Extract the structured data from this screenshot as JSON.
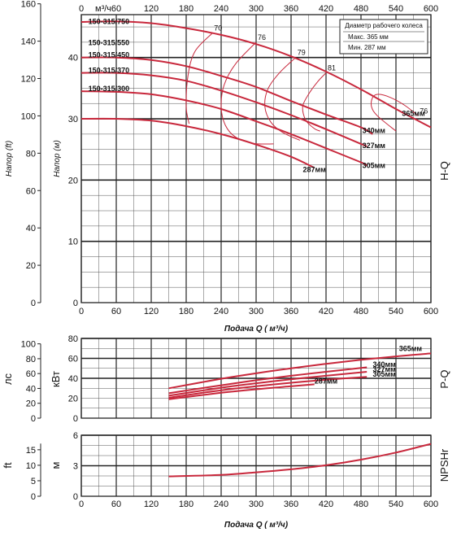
{
  "colors": {
    "curve": "#c8283c",
    "grid": "#222222",
    "minorGrid": "#555555"
  },
  "chart_data": [
    {
      "id": "hq",
      "type": "line",
      "side_label": "H-Q",
      "xlabel": "Подача Q ( м³/ч)",
      "ylabel_left": "Напор (ft)",
      "ylabel_right": "Напор (м)",
      "top_x_unit": "м³/ч",
      "xlim": [
        0,
        600
      ],
      "ylim": [
        0,
        47
      ],
      "x_ticks": [
        0,
        60,
        120,
        180,
        240,
        300,
        360,
        420,
        480,
        540,
        600
      ],
      "y_ticks": [
        10,
        20,
        30,
        40
      ],
      "ft_ticks": [
        0,
        20,
        40,
        60,
        80,
        100,
        120,
        140,
        160
      ],
      "legend": {
        "title": "Диаметр рабочего колеса",
        "max": "Макс.  365 мм",
        "min": "Мин.    287 мм"
      },
      "model_labels": [
        {
          "text": "150-315/750",
          "x": 12,
          "y": 45.5
        },
        {
          "text": "150-315/550",
          "x": 12,
          "y": 42.0
        },
        {
          "text": "150-315/450",
          "x": 12,
          "y": 40.0
        },
        {
          "text": "150-315/370",
          "x": 12,
          "y": 37.5
        },
        {
          "text": "150-315/300",
          "x": 12,
          "y": 34.5
        }
      ],
      "series": [
        {
          "name": "365мм",
          "x": [
            0,
            60,
            120,
            180,
            240,
            300,
            360,
            420,
            480,
            540,
            600
          ],
          "y": [
            45.8,
            45.9,
            45.6,
            44.8,
            43.7,
            42.2,
            40.2,
            37.7,
            34.8,
            31.6,
            28.6
          ]
        },
        {
          "name": "340мм",
          "x": [
            0,
            60,
            120,
            180,
            240,
            300,
            360,
            420,
            480,
            500
          ],
          "y": [
            40.0,
            40.0,
            39.6,
            38.6,
            37.0,
            35.2,
            32.9,
            30.7,
            28.6,
            27.5
          ]
        },
        {
          "name": "327мм",
          "x": [
            0,
            60,
            120,
            180,
            240,
            300,
            360,
            420,
            480,
            490
          ],
          "y": [
            37.5,
            37.5,
            37.1,
            36.2,
            34.6,
            32.7,
            30.6,
            28.3,
            25.9,
            25.5
          ]
        },
        {
          "name": "305мм",
          "x": [
            0,
            60,
            120,
            180,
            240,
            300,
            360,
            420,
            480,
            490
          ],
          "y": [
            34.5,
            34.4,
            34.0,
            33.0,
            31.6,
            29.6,
            27.5,
            25.2,
            22.9,
            22.4
          ]
        },
        {
          "name": "287мм",
          "x": [
            0,
            60,
            120,
            180,
            240,
            300,
            360,
            400
          ],
          "y": [
            30.0,
            30.0,
            29.7,
            28.8,
            27.5,
            25.8,
            23.8,
            22.0
          ]
        }
      ],
      "efficiency": [
        {
          "label": "70",
          "x": [
            225,
            195,
            183,
            180,
            185
          ],
          "y": [
            44.0,
            41.0,
            37.0,
            32.0,
            29.2
          ]
        },
        {
          "label": "76",
          "x": [
            300,
            265,
            245,
            240,
            247,
            265,
            295,
            330
          ],
          "y": [
            42.5,
            39.0,
            35.5,
            32.0,
            29.0,
            27.0,
            26.0,
            25.9
          ]
        },
        {
          "label": "79",
          "x": [
            368,
            340,
            320,
            315,
            325,
            345,
            375
          ],
          "y": [
            40.0,
            37.5,
            34.8,
            32.0,
            29.5,
            27.8,
            26.5
          ]
        },
        {
          "label": "81",
          "x": [
            420,
            405,
            390,
            380,
            385,
            400,
            410
          ],
          "y": [
            37.5,
            36.0,
            34.0,
            32.0,
            29.8,
            28.4,
            28.0
          ]
        },
        {
          "label": "76",
          "x": [
            578,
            555,
            530,
            510,
            500,
            498,
            508,
            540
          ],
          "y": [
            30.5,
            32.2,
            33.5,
            34.0,
            33.5,
            32.0,
            30.5,
            28.0
          ]
        }
      ]
    },
    {
      "id": "pq",
      "type": "line",
      "side_label": "P-Q",
      "ylabel_left": "лс",
      "ylabel_right": "кВт",
      "xlim": [
        0,
        600
      ],
      "ylim": [
        0,
        80
      ],
      "y_ticks": [
        0,
        20,
        40,
        60,
        80
      ],
      "hp_ticks": [
        0,
        20,
        40,
        60,
        80,
        100
      ],
      "series": [
        {
          "name": "365мм",
          "x": [
            150,
            240,
            300,
            360,
            420,
            480,
            540,
            600
          ],
          "y": [
            30,
            39.5,
            45,
            50,
            54.5,
            58.5,
            62,
            65
          ]
        },
        {
          "name": "340мм",
          "x": [
            150,
            240,
            300,
            360,
            420,
            490
          ],
          "y": [
            25,
            33,
            38,
            42.5,
            46.5,
            51
          ]
        },
        {
          "name": "327мм",
          "x": [
            150,
            240,
            300,
            360,
            420,
            490
          ],
          "y": [
            22.5,
            30.5,
            35,
            39,
            42.5,
            46.5
          ]
        },
        {
          "name": "305мм",
          "x": [
            150,
            240,
            300,
            360,
            420,
            490
          ],
          "y": [
            20.5,
            28,
            32,
            35.5,
            38.5,
            41.5
          ]
        },
        {
          "name": "287мм",
          "x": [
            150,
            240,
            300,
            360,
            400
          ],
          "y": [
            19,
            25.5,
            29,
            32,
            34
          ]
        }
      ]
    },
    {
      "id": "npsh",
      "type": "line",
      "side_label": "NPSHr",
      "xlabel": "Подача Q ( м³/ч)",
      "ylabel_left": "ft",
      "ylabel_right": "м",
      "xlim": [
        0,
        600
      ],
      "ylim": [
        0,
        6
      ],
      "y_ticks": [
        0,
        3,
        6
      ],
      "ft_ticks": [
        0,
        5,
        10,
        15
      ],
      "series": [
        {
          "name": "NPSHr",
          "x": [
            150,
            240,
            300,
            360,
            420,
            480,
            540,
            600
          ],
          "y": [
            1.95,
            2.1,
            2.35,
            2.65,
            3.05,
            3.6,
            4.3,
            5.15
          ]
        }
      ]
    }
  ]
}
